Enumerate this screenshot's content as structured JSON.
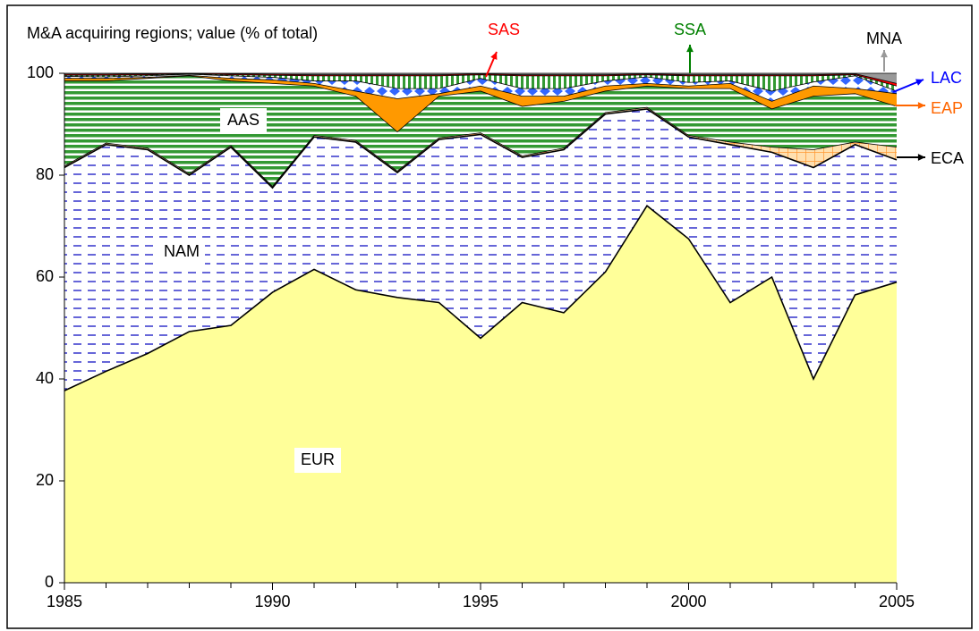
{
  "chart_data": {
    "type": "stacked-area",
    "subtitle": "M&A acquiring regions; value (% of total)",
    "x": [
      1985,
      1986,
      1987,
      1988,
      1989,
      1990,
      1991,
      1992,
      1993,
      1994,
      1995,
      1996,
      1997,
      1998,
      1999,
      2000,
      2001,
      2002,
      2003,
      2004,
      2005
    ],
    "xlim": [
      1985,
      2005
    ],
    "xticks": [
      1985,
      1990,
      1995,
      2000,
      2005
    ],
    "ylim": [
      0,
      100
    ],
    "yticks": [
      0,
      20,
      40,
      60,
      80,
      100
    ],
    "series": [
      {
        "name": "EUR",
        "color": "#ffff99",
        "pattern": "solid",
        "values": [
          37.7,
          41.5,
          45,
          49.3,
          50.5,
          57,
          61.5,
          57.5,
          56,
          55,
          48,
          55,
          53,
          61,
          74,
          67.5,
          55,
          60,
          40,
          56.5,
          59
        ]
      },
      {
        "name": "NAM",
        "color": "#3333cc",
        "pattern": "dashes",
        "values": [
          43.8,
          44.5,
          40,
          30.7,
          35,
          20.5,
          26,
          29,
          24.5,
          32,
          40,
          28.5,
          32,
          31,
          19,
          20,
          31,
          24.5,
          41.5,
          29.5,
          24
        ]
      },
      {
        "name": "ECA",
        "color": "#ff9933",
        "pattern": "grid",
        "values": [
          0.3,
          0.3,
          0.3,
          0.3,
          0.3,
          0.3,
          0.3,
          0.3,
          0.3,
          0.3,
          0.3,
          0.3,
          0.3,
          0.3,
          0.3,
          0.3,
          0.5,
          1,
          3.5,
          0.5,
          2.5
        ]
      },
      {
        "name": "AAS",
        "color": "#339933",
        "pattern": "hlines",
        "values": [
          16.7,
          12.2,
          13.7,
          19.2,
          12.7,
          20.2,
          9.7,
          8.7,
          7.7,
          8.2,
          8.2,
          9.7,
          9.2,
          4.2,
          4.2,
          9.2,
          10.5,
          7.5,
          10.5,
          9.5,
          8
        ]
      },
      {
        "name": "EAP",
        "color": "#ff9900",
        "pattern": "solid",
        "values": [
          0.5,
          0.5,
          0.2,
          0.1,
          0.5,
          0.7,
          0.5,
          1,
          6.5,
          0.5,
          1,
          2,
          1,
          1,
          0.5,
          0.5,
          1,
          1.5,
          2,
          1,
          2.5
        ]
      },
      {
        "name": "LAC",
        "color": "#3366ff",
        "pattern": "diamonds",
        "values": [
          0.4,
          0.3,
          0.3,
          0.2,
          0.5,
          0.5,
          0.5,
          2,
          2,
          1,
          1.5,
          1.5,
          1.5,
          1,
          1.3,
          0.7,
          0.5,
          2,
          0.8,
          2.5,
          0.5
        ]
      },
      {
        "name": "SSA",
        "color": "#339933",
        "pattern": "vlines",
        "values": [
          0.2,
          0.3,
          0.2,
          0.1,
          0.2,
          0.4,
          1,
          1,
          2.5,
          2.5,
          0.7,
          2.5,
          2.5,
          1,
          0.4,
          1.3,
          1,
          3,
          1.2,
          0.2,
          1
        ]
      },
      {
        "name": "SAS",
        "color": "#ff0000",
        "pattern": "solid",
        "values": [
          0.2,
          0.2,
          0.2,
          0.1,
          0.2,
          0.2,
          0.2,
          0.2,
          0.2,
          0.2,
          0.2,
          0.2,
          0.2,
          0.2,
          0.2,
          0.2,
          0.2,
          0.2,
          0.2,
          0.2,
          0.5
        ]
      },
      {
        "name": "MNA",
        "color": "#999999",
        "pattern": "solid",
        "values": [
          0.2,
          0.2,
          0.1,
          0,
          0.1,
          0.2,
          0.3,
          0.3,
          0.3,
          0.3,
          0.1,
          0.3,
          0.3,
          0.3,
          0.1,
          0.3,
          0.3,
          0.3,
          0.3,
          0.1,
          2
        ]
      }
    ]
  }
}
